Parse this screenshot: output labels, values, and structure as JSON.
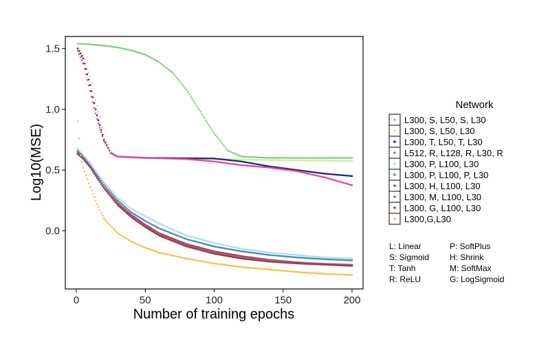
{
  "chart_data": {
    "type": "line",
    "xlabel": "Number of training epochs",
    "ylabel": "Log10(MSE)",
    "xlim": [
      -8,
      208
    ],
    "ylim": [
      -0.48,
      1.6
    ],
    "xticks": [
      0,
      50,
      100,
      150,
      200
    ],
    "xtick_labels": [
      "0",
      "50",
      "100",
      "150",
      "200"
    ],
    "yticks": [
      0.0,
      0.5,
      1.0,
      1.5
    ],
    "ytick_labels": [
      "0.0",
      "0.5",
      "1.0",
      "1.5"
    ],
    "grid": false,
    "legend_title": "Network",
    "legend_position": "right",
    "series": [
      {
        "name": "L300, S, L50, S, L30",
        "color": "#8fc98a",
        "points": [
          [
            1,
            1.54
          ],
          [
            10,
            1.535
          ],
          [
            20,
            1.525
          ],
          [
            30,
            1.51
          ],
          [
            40,
            1.485
          ],
          [
            50,
            1.45
          ],
          [
            60,
            1.39
          ],
          [
            70,
            1.3
          ],
          [
            80,
            1.16
          ],
          [
            90,
            0.98
          ],
          [
            100,
            0.8
          ],
          [
            110,
            0.66
          ],
          [
            120,
            0.61
          ],
          [
            140,
            0.6
          ],
          [
            160,
            0.6
          ],
          [
            180,
            0.6
          ],
          [
            200,
            0.6
          ]
        ]
      },
      {
        "name": "L300, S, L50, L30",
        "color": "#ccf29a",
        "points": [
          [
            1,
            1.51
          ],
          [
            5,
            1.45
          ],
          [
            10,
            1.27
          ],
          [
            15,
            1.03
          ],
          [
            20,
            0.8
          ],
          [
            25,
            0.65
          ],
          [
            30,
            0.61
          ],
          [
            50,
            0.6
          ],
          [
            100,
            0.59
          ],
          [
            150,
            0.58
          ],
          [
            200,
            0.575
          ]
        ]
      },
      {
        "name": "L300, T, L50, T, L30",
        "color": "#1f2d78",
        "points": [
          [
            1,
            1.5
          ],
          [
            5,
            1.42
          ],
          [
            10,
            1.2
          ],
          [
            15,
            0.95
          ],
          [
            20,
            0.75
          ],
          [
            25,
            0.64
          ],
          [
            30,
            0.61
          ],
          [
            50,
            0.6
          ],
          [
            100,
            0.595
          ],
          [
            120,
            0.57
          ],
          [
            140,
            0.53
          ],
          [
            160,
            0.5
          ],
          [
            180,
            0.47
          ],
          [
            200,
            0.45
          ]
        ]
      },
      {
        "name": "L512, R, L128, R, L30, R",
        "color": "#e8449c",
        "points": [
          [
            1,
            1.48
          ],
          [
            5,
            1.38
          ],
          [
            10,
            1.15
          ],
          [
            15,
            0.92
          ],
          [
            20,
            0.74
          ],
          [
            25,
            0.64
          ],
          [
            30,
            0.61
          ],
          [
            50,
            0.6
          ],
          [
            80,
            0.59
          ],
          [
            100,
            0.57
          ],
          [
            120,
            0.54
          ],
          [
            140,
            0.52
          ],
          [
            160,
            0.49
          ],
          [
            180,
            0.44
          ],
          [
            200,
            0.375
          ]
        ]
      },
      {
        "name": "L300, P, L100, L30",
        "color": "#b8d9ef",
        "points": [
          [
            1,
            0.68
          ],
          [
            5,
            0.62
          ],
          [
            10,
            0.56
          ],
          [
            20,
            0.4
          ],
          [
            30,
            0.27
          ],
          [
            40,
            0.18
          ],
          [
            50,
            0.12
          ],
          [
            60,
            0.06
          ],
          [
            80,
            -0.04
          ],
          [
            100,
            -0.1
          ],
          [
            120,
            -0.15
          ],
          [
            140,
            -0.18
          ],
          [
            160,
            -0.2
          ],
          [
            180,
            -0.22
          ],
          [
            200,
            -0.23
          ]
        ]
      },
      {
        "name": "L300, P, L100, P, L30",
        "color": "#3a8fbc",
        "points": [
          [
            1,
            0.66
          ],
          [
            5,
            0.61
          ],
          [
            10,
            0.54
          ],
          [
            20,
            0.38
          ],
          [
            30,
            0.25
          ],
          [
            40,
            0.15
          ],
          [
            50,
            0.08
          ],
          [
            60,
            0.02
          ],
          [
            80,
            -0.07
          ],
          [
            100,
            -0.13
          ],
          [
            120,
            -0.17
          ],
          [
            140,
            -0.2
          ],
          [
            160,
            -0.22
          ],
          [
            180,
            -0.235
          ],
          [
            200,
            -0.245
          ]
        ]
      },
      {
        "name": "L300, H, L100, L30",
        "color": "#c8302c",
        "points": [
          [
            1,
            0.64
          ],
          [
            5,
            0.6
          ],
          [
            10,
            0.53
          ],
          [
            20,
            0.36
          ],
          [
            30,
            0.23
          ],
          [
            40,
            0.13
          ],
          [
            50,
            0.05
          ],
          [
            60,
            -0.02
          ],
          [
            80,
            -0.11
          ],
          [
            100,
            -0.17
          ],
          [
            120,
            -0.21
          ],
          [
            140,
            -0.24
          ],
          [
            160,
            -0.26
          ],
          [
            180,
            -0.275
          ],
          [
            200,
            -0.285
          ]
        ]
      },
      {
        "name": "L300, M, L100, L30",
        "color": "#8c6a9e",
        "points": [
          [
            1,
            0.65
          ],
          [
            5,
            0.6
          ],
          [
            10,
            0.53
          ],
          [
            20,
            0.36
          ],
          [
            30,
            0.22
          ],
          [
            40,
            0.12
          ],
          [
            50,
            0.04
          ],
          [
            60,
            -0.03
          ],
          [
            80,
            -0.12
          ],
          [
            100,
            -0.18
          ],
          [
            120,
            -0.22
          ],
          [
            140,
            -0.245
          ],
          [
            160,
            -0.262
          ],
          [
            180,
            -0.272
          ],
          [
            200,
            -0.28
          ]
        ]
      },
      {
        "name": "L300, G, L100, L30",
        "color": "#9a3d3d",
        "points": [
          [
            1,
            0.63
          ],
          [
            5,
            0.59
          ],
          [
            10,
            0.52
          ],
          [
            20,
            0.35
          ],
          [
            30,
            0.21
          ],
          [
            40,
            0.11
          ],
          [
            50,
            0.03
          ],
          [
            60,
            -0.04
          ],
          [
            80,
            -0.13
          ],
          [
            100,
            -0.19
          ],
          [
            120,
            -0.23
          ],
          [
            140,
            -0.255
          ],
          [
            160,
            -0.27
          ],
          [
            180,
            -0.28
          ],
          [
            200,
            -0.29
          ]
        ]
      },
      {
        "name": "L300,G,L30",
        "color": "#f7c24a",
        "points": [
          [
            1,
            0.9
          ],
          [
            3,
            0.62
          ],
          [
            5,
            0.52
          ],
          [
            10,
            0.36
          ],
          [
            15,
            0.22
          ],
          [
            20,
            0.1
          ],
          [
            30,
            -0.02
          ],
          [
            40,
            -0.09
          ],
          [
            50,
            -0.14
          ],
          [
            60,
            -0.18
          ],
          [
            80,
            -0.23
          ],
          [
            100,
            -0.27
          ],
          [
            120,
            -0.3
          ],
          [
            140,
            -0.32
          ],
          [
            160,
            -0.34
          ],
          [
            180,
            -0.355
          ],
          [
            200,
            -0.365
          ]
        ]
      }
    ]
  },
  "abbreviations": [
    "L: Linear",
    "P: SoftPlus",
    "S: Sigmoid",
    "H: Shrink",
    "T: Tanh",
    "M: SoftMax",
    "R: ReLU",
    "G: LogSigmoid"
  ]
}
